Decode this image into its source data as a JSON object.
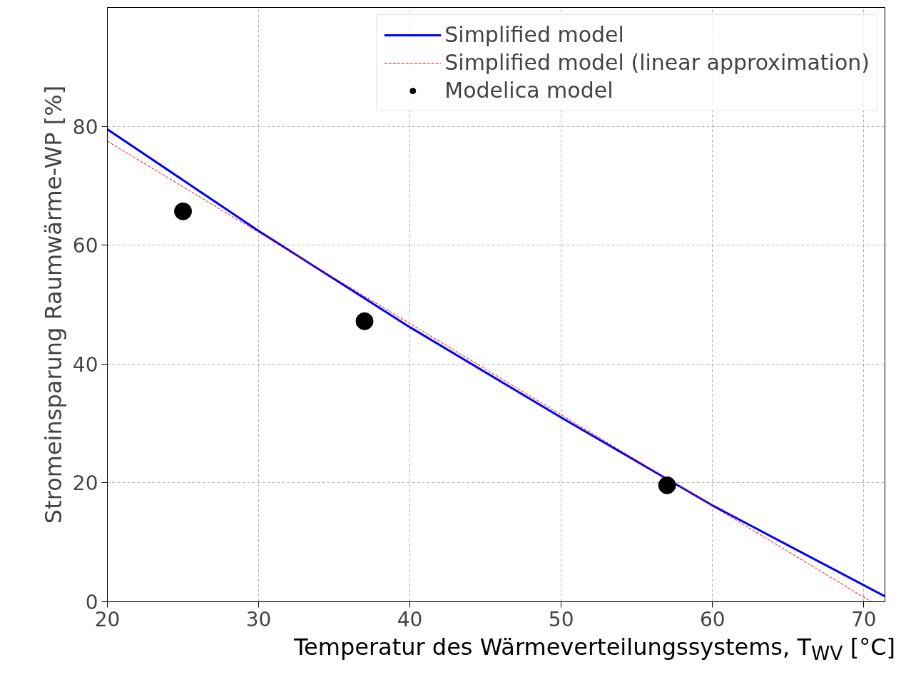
{
  "chart_data": {
    "type": "line",
    "xlabel": "Temperatur des Wärmeverteilungssystems, T$_{WV}$ [°C]",
    "ylabel": "Stromeinsparung Raumwärme-WP [%]",
    "xlim": [
      20,
      71.4
    ],
    "ylim": [
      0,
      100
    ],
    "xticks": [
      20,
      30,
      40,
      50,
      60,
      70
    ],
    "yticks": [
      0,
      20,
      40,
      60,
      80
    ],
    "grid": true,
    "legend": "top right",
    "series": [
      {
        "name": "Simplified model",
        "color": "#0000ff",
        "line_style": "solid",
        "x": [
          20,
          30,
          40,
          50,
          60,
          71.4
        ],
        "values": [
          79.5,
          62.4,
          46.2,
          31,
          16.2,
          0.9
        ]
      },
      {
        "name": "Simplified model (linear approximation)",
        "color": "#ff0000",
        "line_style": "dashed",
        "x": [
          20,
          70.5
        ],
        "values": [
          77.5,
          0
        ]
      },
      {
        "name": "Modelica model",
        "color": "#000000",
        "type": "scatter",
        "marker": "circle",
        "x": [
          25,
          37,
          57
        ],
        "values": [
          65.7,
          47.2,
          19.6
        ]
      }
    ]
  }
}
